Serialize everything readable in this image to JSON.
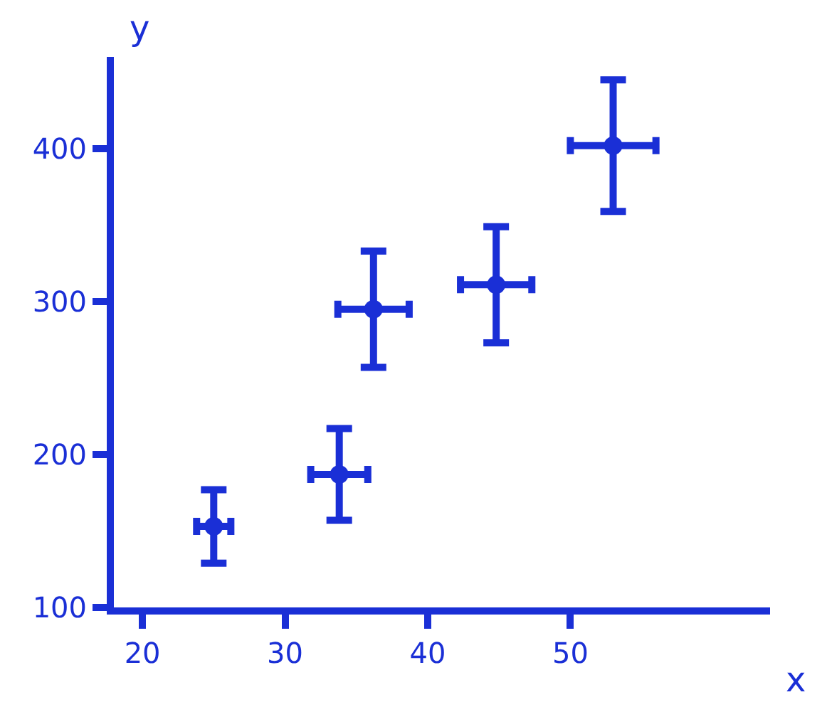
{
  "chart_data": {
    "type": "scatter",
    "xlabel": "x",
    "ylabel": "y",
    "x": [
      25,
      33.8,
      36.2,
      44.8,
      53
    ],
    "series": [
      {
        "color": "#1a2fd6",
        "values": [
          153,
          187,
          295,
          311,
          402
        ],
        "errors": [
          24,
          30,
          38,
          38,
          43
        ],
        "xerrors": [
          1.2,
          2,
          2.5,
          2.5,
          3
        ]
      }
    ],
    "xlim": [
      18,
      64
    ],
    "ylim": [
      100,
      460
    ],
    "xticks": [
      20,
      30,
      40,
      50
    ],
    "yticks": [
      100,
      200,
      300,
      400
    ],
    "grid": false,
    "marker": "circle"
  }
}
